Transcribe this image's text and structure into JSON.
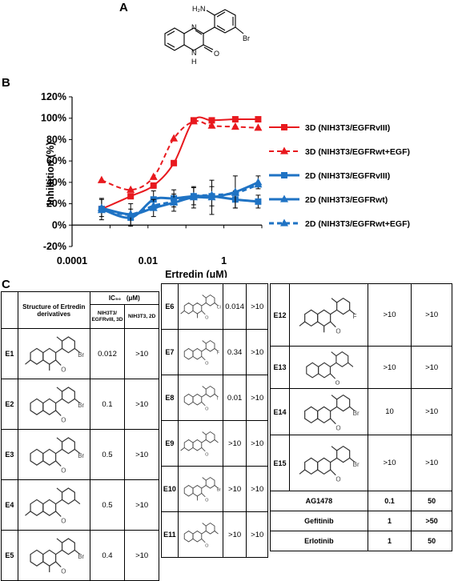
{
  "panels": {
    "a": "A",
    "b": "B",
    "c": "C"
  },
  "molecule_a": {
    "labels": [
      "H₂N",
      "N",
      "N",
      "H",
      "O",
      "Br"
    ]
  },
  "chart_data": {
    "type": "line",
    "xlabel": "Ertredin (μM)",
    "ylabel": "Inhibition (%)",
    "xscale": "log",
    "xlim": [
      0.0001,
      10
    ],
    "ylim": [
      -20,
      120
    ],
    "xticks": [
      "0.0001",
      "0.01",
      "1"
    ],
    "yticks": [
      "-20%",
      "0%",
      "20%",
      "40%",
      "60%",
      "80%",
      "100%",
      "120%"
    ],
    "legend_position": "right",
    "x": [
      0.0006,
      0.0035,
      0.014,
      0.048,
      0.16,
      0.48,
      2,
      8
    ],
    "series": [
      {
        "name": "3D (NIH3T3/EGFRvIII)",
        "color": "#e8191e",
        "style": "solid",
        "marker": "square",
        "values": [
          15,
          27,
          37,
          58,
          98,
          98,
          99,
          99
        ]
      },
      {
        "name": "3D (NIH3T3/EGFRwt+EGF)",
        "color": "#e8191e",
        "style": "dashed",
        "marker": "triangle",
        "values": [
          42,
          33,
          45,
          81,
          97,
          93,
          92,
          91
        ]
      },
      {
        "name": "2D (NIH3T3/EGFRvIII)",
        "color": "#1f73c4",
        "style": "solid",
        "marker": "square",
        "values": [
          15,
          7,
          24,
          25,
          27,
          27,
          24,
          22
        ],
        "errors": [
          10,
          8,
          8,
          8,
          8,
          9,
          8,
          6
        ]
      },
      {
        "name": "2D (NIH3T3/EGFRwt)",
        "color": "#1f73c4",
        "style": "solid",
        "marker": "triangle",
        "values": [
          16,
          10,
          16,
          21,
          26,
          26,
          31,
          40
        ],
        "errors": [
          8,
          10,
          8,
          8,
          10,
          16,
          15,
          6
        ]
      },
      {
        "name": "2D (NIH3T3/EGFRwt+EGF)",
        "color": "#1f73c4",
        "style": "dashed",
        "marker": "triangle",
        "values": [
          14,
          10,
          18,
          22,
          27,
          28,
          30,
          38
        ]
      }
    ]
  },
  "table": {
    "header": {
      "structure": "Structure of Ertredin derivatives",
      "ic50": "IC₅₀",
      "unit": "(μM)",
      "col_3d": "NIH3T3/ EGFRvIII, 3D",
      "col_2d": "NIH3T3, 2D"
    },
    "col1": [
      {
        "id": "E1",
        "v3d": "0.012",
        "v2d": ">10",
        "sub": "Br"
      },
      {
        "id": "E2",
        "v3d": "0.1",
        "v2d": ">10",
        "sub": "Br"
      },
      {
        "id": "E3",
        "v3d": "0.5",
        "v2d": ">10",
        "sub": "Br"
      },
      {
        "id": "E4",
        "v3d": "0.5",
        "v2d": ">10",
        "sub": ""
      },
      {
        "id": "E5",
        "v3d": "0.4",
        "v2d": ">10",
        "sub": "Br"
      }
    ],
    "col2": [
      {
        "id": "E6",
        "v3d": "0.014",
        "v2d": ">10",
        "sub": "Cl"
      },
      {
        "id": "E7",
        "v3d": "0.34",
        "v2d": ">10",
        "sub": "F"
      },
      {
        "id": "E8",
        "v3d": "0.01",
        "v2d": ">10",
        "sub": "I"
      },
      {
        "id": "E9",
        "v3d": ">10",
        "v2d": ">10",
        "sub": ""
      },
      {
        "id": "E10",
        "v3d": ">10",
        "v2d": ">10",
        "sub": "Br"
      },
      {
        "id": "E11",
        "v3d": ">10",
        "v2d": ">10",
        "sub": ""
      }
    ],
    "col3": [
      {
        "id": "E12",
        "v3d": ">10",
        "v2d": ">10",
        "sub": "F"
      },
      {
        "id": "E13",
        "v3d": ">10",
        "v2d": ">10",
        "sub": ""
      },
      {
        "id": "E14",
        "v3d": "10",
        "v2d": ">10",
        "sub": "Br"
      },
      {
        "id": "E15",
        "v3d": ">10",
        "v2d": ">10",
        "sub": "Br"
      }
    ],
    "controls": [
      {
        "name": "AG1478",
        "v3d": "0.1",
        "v2d": "50"
      },
      {
        "name": "Gefitinib",
        "v3d": "1",
        "v2d": ">50"
      },
      {
        "name": "Erlotinib",
        "v3d": "1",
        "v2d": "50"
      }
    ]
  }
}
